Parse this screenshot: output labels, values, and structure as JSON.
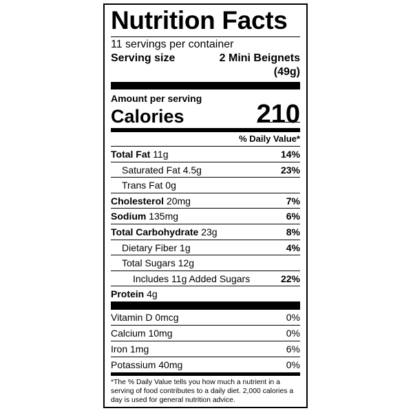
{
  "title": "Nutrition Facts",
  "servings": "11 servings per container",
  "serving_size": {
    "label": "Serving size",
    "value": "2 Mini Beignets",
    "weight": "(49g)"
  },
  "amount_per_serving": "Amount per serving",
  "calories": {
    "label": "Calories",
    "value": 210
  },
  "daily_value_header": "% Daily Value*",
  "nutrients": [
    {
      "name": "Total Fat",
      "amount": "11g",
      "dv": "14%"
    },
    {
      "name": "Saturated Fat",
      "amount": "4.5g",
      "dv": "23%"
    },
    {
      "name": "Trans Fat",
      "amount": "0g"
    },
    {
      "name": "Cholesterol",
      "amount": "20mg",
      "dv": "7%"
    },
    {
      "name": "Sodium",
      "amount": "135mg",
      "dv": "6%"
    },
    {
      "name": "Total Carbohydrate",
      "amount": "23g",
      "dv": "8%"
    },
    {
      "name": "Dietary Fiber",
      "amount": "1g",
      "dv": "4%"
    },
    {
      "name": "Total Sugars",
      "amount": "12g"
    },
    {
      "name": "Includes 11g Added Sugars",
      "dv": "22%"
    },
    {
      "name": "Protein",
      "amount": "4g"
    }
  ],
  "vitamins": [
    {
      "name": "Vitamin D",
      "amount": "0mcg",
      "dv": "0%"
    },
    {
      "name": "Calcium",
      "amount": "10mg",
      "dv": "0%"
    },
    {
      "name": "Iron",
      "amount": "1mg",
      "dv": "6%"
    },
    {
      "name": "Potassium",
      "amount": "40mg",
      "dv": "0%"
    }
  ],
  "footnote": "*The % Daily Value tells you how much a nutrient in a serving of food contributes to a daily diet. 2,000 calories a day is used for general nutrition advice."
}
